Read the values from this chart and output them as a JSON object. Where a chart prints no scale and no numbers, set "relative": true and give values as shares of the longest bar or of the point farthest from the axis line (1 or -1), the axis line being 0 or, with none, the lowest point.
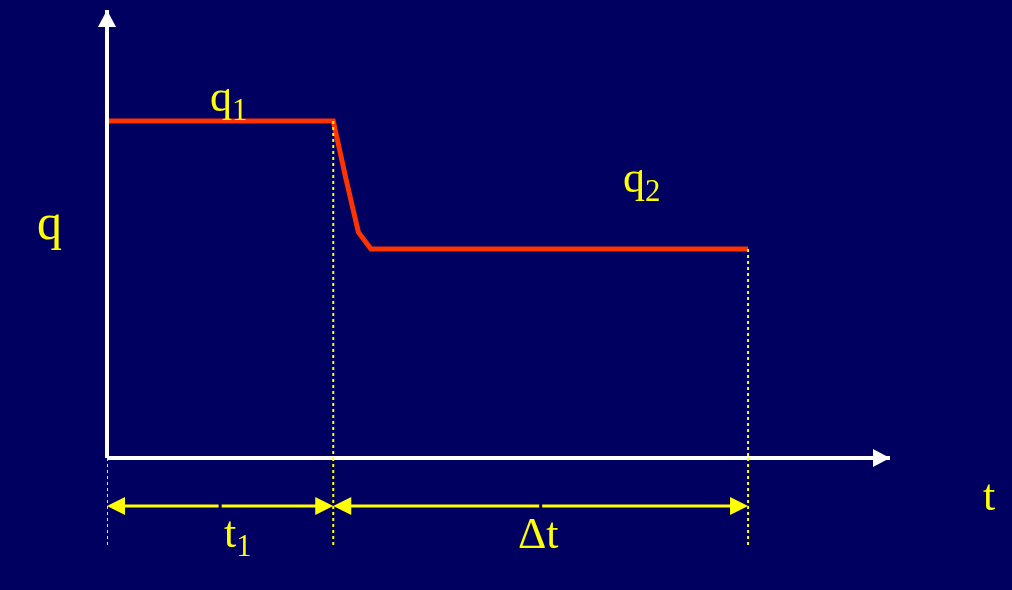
{
  "chart_data": {
    "type": "line",
    "relative": true,
    "grid": false,
    "marker": "none",
    "line_style": "solid",
    "categories": [
      null,
      null,
      null,
      null,
      null,
      null,
      null,
      null,
      null,
      null,
      null,
      null,
      null,
      null,
      null,
      null,
      null,
      null,
      null,
      null,
      null,
      null,
      null,
      null,
      null,
      null,
      null,
      null,
      null,
      null,
      null,
      null,
      null,
      null,
      null,
      null,
      null,
      null,
      null,
      null,
      null,
      null,
      null,
      null,
      null,
      null,
      null,
      null,
      null,
      null,
      null,
      null
    ],
    "series": [
      {
        "color": "#ff3300",
        "values": [
          1,
          1,
          1,
          1,
          1,
          1,
          1,
          1,
          1,
          1,
          1,
          1,
          1,
          1,
          1,
          1,
          1,
          1,
          1,
          0.83,
          0.67,
          0.62,
          0.62,
          0.62,
          0.62,
          0.62,
          0.62,
          0.62,
          0.62,
          0.62,
          0.62,
          0.62,
          0.62,
          0.62,
          0.62,
          0.62,
          0.62,
          0.62,
          0.62,
          0.62,
          0.62,
          0.62,
          0.62,
          0.62,
          0.62,
          0.62,
          0.62,
          0.62,
          0.62,
          0.62,
          0.62,
          0.62
        ]
      }
    ],
    "ylabel": "q",
    "annotations": [
      "q$_{1}$",
      "q$_{2}$",
      "t$_{1}$",
      "Δt",
      "t"
    ]
  }
}
